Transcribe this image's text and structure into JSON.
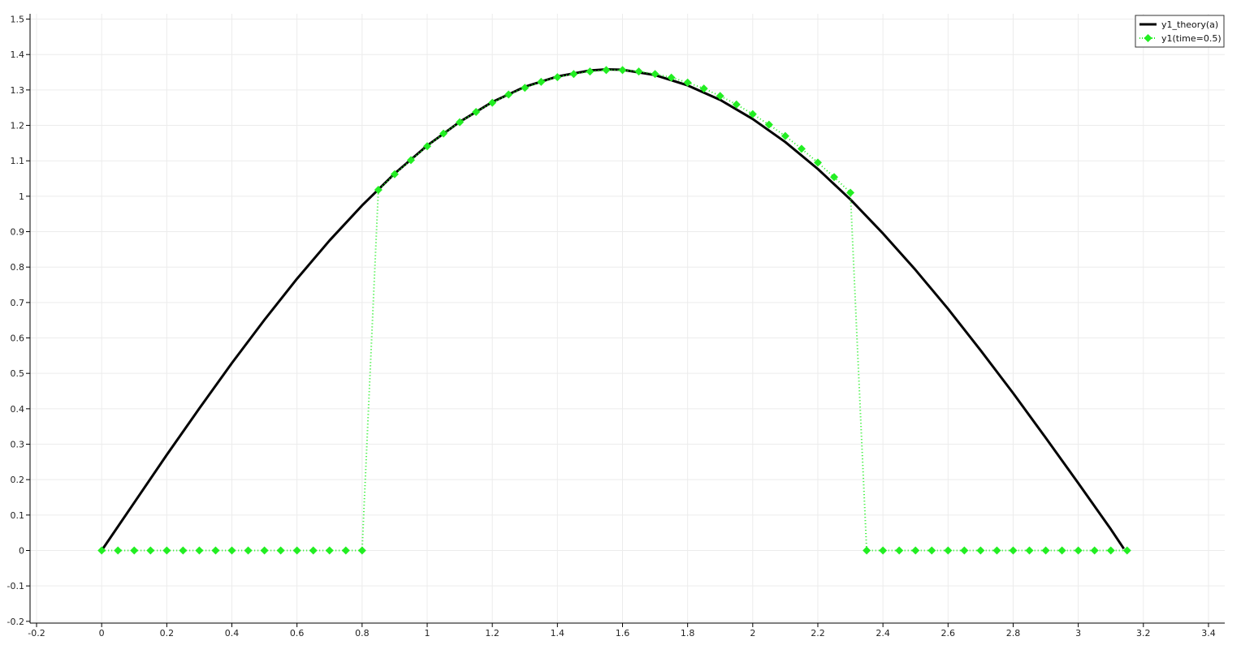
{
  "chart_data": {
    "type": "line",
    "title": "",
    "xlabel": "",
    "ylabel": "",
    "xlim": [
      -0.22,
      3.45
    ],
    "ylim": [
      -0.205,
      1.515
    ],
    "grid": true,
    "legend_position": "top-right",
    "x_ticks": [
      -0.2,
      0,
      0.2,
      0.4,
      0.6,
      0.8,
      1,
      1.2,
      1.4,
      1.6,
      1.8,
      2,
      2.2,
      2.4,
      2.6,
      2.8,
      3,
      3.2,
      3.4
    ],
    "x_tick_labels": [
      "-0.2",
      "0",
      "0.2",
      "0.4",
      "0.6",
      "0.8",
      "1",
      "1.2",
      "1.4",
      "1.6",
      "1.8",
      "2",
      "2.2",
      "2.4",
      "2.6",
      "2.8",
      "3",
      "3.2",
      "3.4"
    ],
    "y_ticks": [
      -0.2,
      -0.1,
      0,
      0.1,
      0.2,
      0.3,
      0.4,
      0.5,
      0.6,
      0.7,
      0.8,
      0.9,
      1,
      1.1,
      1.2,
      1.3,
      1.4,
      1.5
    ],
    "y_tick_labels": [
      "-0.2",
      "-0.1",
      "0",
      "0.1",
      "0.2",
      "0.3",
      "0.4",
      "0.5",
      "0.6",
      "0.7",
      "0.8",
      "0.9",
      "1",
      "1.1",
      "1.2",
      "1.3",
      "1.4",
      "1.5"
    ],
    "series": [
      {
        "name": "y1_theory(a)",
        "color": "#000000",
        "style": "solid",
        "marker": "none",
        "x": [
          0,
          0.1,
          0.2,
          0.3,
          0.4,
          0.5,
          0.6,
          0.7,
          0.8,
          0.9,
          1.0,
          1.1,
          1.2,
          1.3,
          1.4,
          1.5,
          1.55,
          1.6,
          1.7,
          1.8,
          1.9,
          2.0,
          2.1,
          2.2,
          2.3,
          2.4,
          2.5,
          2.6,
          2.7,
          2.8,
          2.9,
          3.0,
          3.1,
          3.14
        ],
        "y": [
          0,
          0.135,
          0.27,
          0.401,
          0.529,
          0.651,
          0.767,
          0.875,
          0.974,
          1.064,
          1.143,
          1.21,
          1.266,
          1.309,
          1.338,
          1.355,
          1.358,
          1.357,
          1.342,
          1.313,
          1.272,
          1.218,
          1.153,
          1.077,
          0.991,
          0.895,
          0.792,
          0.682,
          0.565,
          0.444,
          0.318,
          0.19,
          0.06,
          0.005
        ]
      },
      {
        "name": "y1(time=0.5)",
        "color": "#22ee22",
        "style": "dotted",
        "marker": "diamond",
        "x": [
          0,
          0.05,
          0.1,
          0.15,
          0.2,
          0.25,
          0.3,
          0.35,
          0.4,
          0.45,
          0.5,
          0.55,
          0.6,
          0.65,
          0.7,
          0.75,
          0.8,
          0.85,
          0.9,
          0.95,
          1.0,
          1.05,
          1.1,
          1.15,
          1.2,
          1.25,
          1.3,
          1.35,
          1.4,
          1.45,
          1.5,
          1.55,
          1.6,
          1.65,
          1.7,
          1.75,
          1.8,
          1.85,
          1.9,
          1.95,
          2.0,
          2.05,
          2.1,
          2.15,
          2.2,
          2.25,
          2.3,
          2.35,
          2.4,
          2.45,
          2.5,
          2.55,
          2.6,
          2.65,
          2.7,
          2.75,
          2.8,
          2.85,
          2.9,
          2.95,
          3.0,
          3.05,
          3.1,
          3.15
        ],
        "y": [
          0,
          0,
          0,
          0,
          0,
          0,
          0,
          0,
          0,
          0,
          0,
          0,
          0,
          0,
          0,
          0,
          0,
          1.018,
          1.062,
          1.102,
          1.141,
          1.177,
          1.209,
          1.238,
          1.264,
          1.287,
          1.306,
          1.323,
          1.336,
          1.345,
          1.352,
          1.356,
          1.356,
          1.352,
          1.345,
          1.335,
          1.321,
          1.304,
          1.283,
          1.259,
          1.232,
          1.202,
          1.17,
          1.134,
          1.095,
          1.054,
          1.01,
          0,
          0,
          0,
          0,
          0,
          0,
          0,
          0,
          0,
          0,
          0,
          0,
          0,
          0,
          0,
          0,
          0
        ]
      }
    ]
  }
}
